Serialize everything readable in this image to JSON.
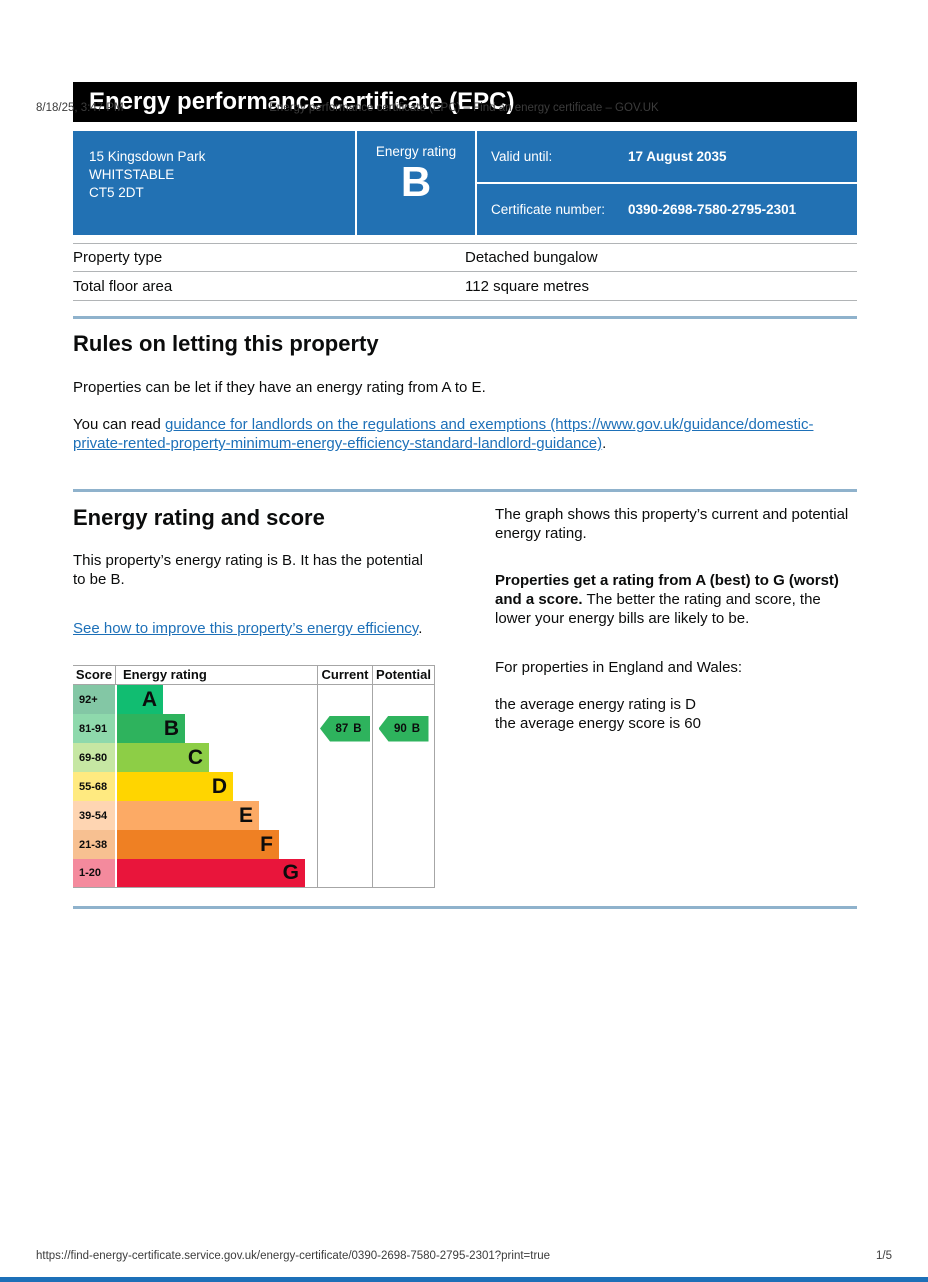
{
  "print_header": {
    "datetime": "8/18/25, 3:47 PM",
    "title": "Energy performance certificate (EPC) – Find an energy certificate – GOV.UK"
  },
  "banner": {
    "title": "Energy performance certificate (EPC)"
  },
  "summary": {
    "address_line1": "15 Kingsdown Park",
    "address_line2": "WHITSTABLE",
    "address_line3": "CT5 2DT",
    "energy_rating_label": "Energy rating",
    "energy_rating": "B",
    "valid_until_label": "Valid until:",
    "valid_until": "17 August 2035",
    "certificate_number_label": "Certificate number:",
    "certificate_number": "0390-2698-7580-2795-2301"
  },
  "property_details": {
    "rows": [
      {
        "label": "Property type",
        "value": "Detached bungalow"
      },
      {
        "label": "Total floor area",
        "value": "112 square metres"
      }
    ]
  },
  "rules_section": {
    "heading": "Rules on letting this property",
    "para1": "Properties can be let if they have an energy rating from A to E.",
    "para2_prefix": "You can read ",
    "para2_link": "guidance for landlords on the regulations and exemptions (https://www.gov.uk/guidance/domestic-private-rented-property-minimum-energy-efficiency-standard-landlord-guidance)",
    "para2_suffix": "."
  },
  "rating_section": {
    "heading": "Energy rating and score",
    "intro": "This property’s energy rating is B. It has the potential to be B.",
    "improve_link": "See how to improve this property’s energy efficiency",
    "improve_suffix": ".",
    "right": {
      "para1": "The graph shows this property’s current and potential energy rating.",
      "para2_bold": "Properties get a rating from A (best) to G (worst) and a score.",
      "para2_rest": " The better the rating and score, the lower your energy bills are likely to be.",
      "para3": "For properties in England and Wales:",
      "para4_line1": "the average energy rating is D",
      "para4_line2": "the average energy score is 60"
    }
  },
  "chart_data": {
    "type": "epc-rating-bands",
    "headers": [
      "Score",
      "Energy rating",
      "Current",
      "Potential"
    ],
    "bands": [
      {
        "score": "92+",
        "letter": "A",
        "color": "#11bd71",
        "tint": "#83c7a5",
        "bar_pct": 23
      },
      {
        "score": "81-91",
        "letter": "B",
        "color": "#2eb35d",
        "tint": "#8ed9ac",
        "bar_pct": 34
      },
      {
        "score": "69-80",
        "letter": "C",
        "color": "#8dce46",
        "tint": "#c6e7a3",
        "bar_pct": 46
      },
      {
        "score": "55-68",
        "letter": "D",
        "color": "#ffd500",
        "tint": "#ffea80",
        "bar_pct": 58
      },
      {
        "score": "39-54",
        "letter": "E",
        "color": "#fcaa65",
        "tint": "#fed5b2",
        "bar_pct": 71
      },
      {
        "score": "21-38",
        "letter": "F",
        "color": "#ef8023",
        "tint": "#f7c091",
        "bar_pct": 81
      },
      {
        "score": "1-20",
        "letter": "G",
        "color": "#e9153b",
        "tint": "#f48a9d",
        "bar_pct": 94
      }
    ],
    "current": {
      "score": "87",
      "letter": "B",
      "band_index": 1
    },
    "potential": {
      "score": "90",
      "letter": "B",
      "band_index": 1
    },
    "arrow_color": "#2eb35d"
  },
  "footer": {
    "url": "https://find-energy-certificate.service.gov.uk/energy-certificate/0390-2698-7580-2795-2301?print=true",
    "page": "1/5"
  },
  "colors": {
    "govuk_blue": "#2271b3",
    "banner_black": "#000000",
    "link_blue": "#1d70b8",
    "divider_blue": "#8fb2cc",
    "border_grey": "#b1b4b6"
  }
}
